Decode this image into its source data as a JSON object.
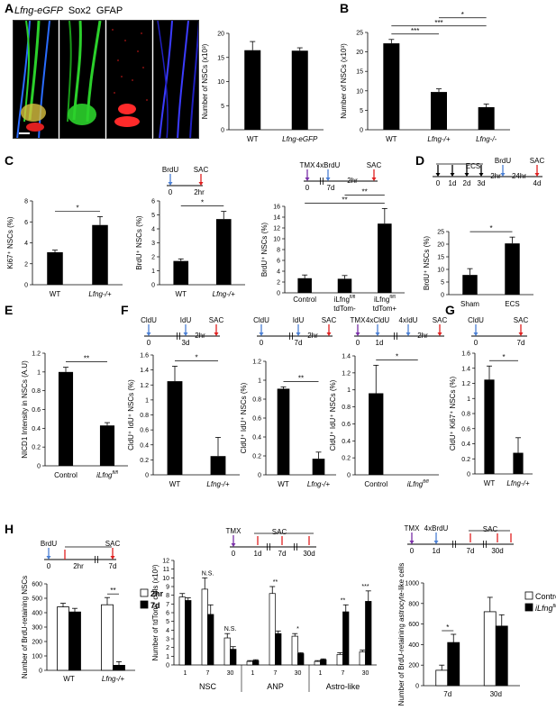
{
  "panel_letters": [
    "A",
    "B",
    "C",
    "D",
    "E",
    "F",
    "G",
    "H"
  ],
  "microscopy": {
    "labels": [
      {
        "text": "Lfng-eGFP",
        "color": "#1fa31f"
      },
      {
        "text": "Sox2",
        "color": "#e02020"
      },
      {
        "text": "GFAP",
        "color": "#2323c8"
      }
    ]
  },
  "timelines": {
    "C1": {
      "events": [
        "BrdU",
        "SAC"
      ],
      "ticks": [
        "0",
        "2hr"
      ]
    },
    "C2": {
      "events": [
        "TMX",
        "4xBrdU",
        "2hr",
        "SAC"
      ],
      "ticks": [
        "0",
        "7d"
      ]
    },
    "D": {
      "events": [
        "ECS",
        "BrdU",
        "2hr",
        "24hr",
        "SAC"
      ],
      "ticks": [
        "0",
        "1d",
        "2d",
        "3d",
        "4d"
      ]
    },
    "F1": {
      "events": [
        "CldU",
        "IdU",
        "2hr",
        "SAC"
      ],
      "ticks": [
        "0",
        "3d"
      ]
    },
    "F2": {
      "events": [
        "CldU",
        "IdU",
        "2hr",
        "SAC"
      ],
      "ticks": [
        "0",
        "7d"
      ]
    },
    "F3": {
      "events": [
        "TMX",
        "4xCldU",
        "4xIdU",
        "2hr",
        "SAC"
      ],
      "ticks": [
        "0",
        "1d"
      ]
    },
    "G": {
      "events": [
        "CldU",
        "SAC"
      ],
      "ticks": [
        "0",
        "7d"
      ]
    },
    "H1": {
      "events": [
        "BrdU",
        "SAC"
      ],
      "ticks": [
        "0",
        "2hr",
        "7d"
      ]
    },
    "H2": {
      "events": [
        "TMX",
        "SAC"
      ],
      "ticks": [
        "0",
        "1d",
        "7d",
        "30d"
      ]
    },
    "H3": {
      "events": [
        "TMX",
        "4xBrdU",
        "SAC"
      ],
      "ticks": [
        "0",
        "1d",
        "7d",
        "30d"
      ]
    }
  },
  "chart_data": [
    {
      "id": "A",
      "type": "bar",
      "categories": [
        "WT",
        "Lfng-eGFP"
      ],
      "values": [
        16.5,
        16.4
      ],
      "errors": [
        1.8,
        0.6
      ],
      "ylabel": "Number of NSCs (x10³)",
      "ylim": [
        0,
        20
      ],
      "yticks": [
        0,
        5,
        10,
        15,
        20
      ],
      "sig": []
    },
    {
      "id": "B",
      "type": "bar",
      "categories": [
        "WT",
        "Lfng-/+",
        "Lfng-/-"
      ],
      "values": [
        22.2,
        9.7,
        5.8
      ],
      "errors": [
        1.0,
        0.8,
        0.8
      ],
      "ylabel": "Number of NSCs (x10³)",
      "ylim": [
        0,
        25
      ],
      "yticks": [
        0,
        5,
        10,
        15,
        20,
        25
      ],
      "sig": [
        {
          "from": 0,
          "to": 1,
          "label": "***",
          "level": 0
        },
        {
          "from": 0,
          "to": 2,
          "label": "***",
          "level": 1
        },
        {
          "from": 1,
          "to": 2,
          "label": "*",
          "level": 2
        }
      ]
    },
    {
      "id": "C_ki67",
      "type": "bar",
      "categories": [
        "WT",
        "Lfng-/+"
      ],
      "values": [
        3.1,
        5.7
      ],
      "errors": [
        0.2,
        0.8
      ],
      "ylabel": "Ki67⁺ NSCs (%)",
      "ylim": [
        0,
        8
      ],
      "yticks": [
        0,
        2,
        4,
        6,
        8
      ],
      "sig": [
        {
          "from": 0,
          "to": 1,
          "label": "*",
          "level": 0
        }
      ]
    },
    {
      "id": "C_brdu",
      "type": "bar",
      "categories": [
        "WT",
        "Lfng-/+"
      ],
      "values": [
        1.7,
        4.7
      ],
      "errors": [
        0.15,
        0.55
      ],
      "ylabel": "BrdU⁺ NSCs (%)",
      "ylim": [
        0,
        6
      ],
      "yticks": [
        0,
        1,
        2,
        3,
        4,
        5,
        6
      ],
      "sig": [
        {
          "from": 0,
          "to": 1,
          "label": "*",
          "level": 0
        }
      ]
    },
    {
      "id": "C_ilfng",
      "type": "bar",
      "categories": [
        "Control",
        "iLfng fl/fl tdTom-",
        "iLfng fl/fl tdTom+"
      ],
      "values": [
        2.7,
        2.6,
        12.8
      ],
      "errors": [
        0.6,
        0.6,
        2.8
      ],
      "ylabel": "BrdU⁺ NSCs (%)",
      "ylim": [
        0,
        16
      ],
      "yticks": [
        0,
        2,
        4,
        6,
        8,
        10,
        12,
        14,
        16
      ],
      "sig": [
        {
          "from": 0,
          "to": 2,
          "label": "**",
          "level": 0
        },
        {
          "from": 1,
          "to": 2,
          "label": "**",
          "level": 1
        }
      ]
    },
    {
      "id": "D",
      "type": "bar",
      "categories": [
        "Sham",
        "ECS"
      ],
      "values": [
        7.8,
        20.3
      ],
      "errors": [
        2.5,
        2.5
      ],
      "ylabel": "BrdU⁺ NSCs (%)",
      "ylim": [
        0,
        25
      ],
      "yticks": [
        0,
        5,
        10,
        15,
        20,
        25
      ],
      "sig": [
        {
          "from": 0,
          "to": 1,
          "label": "*",
          "level": 0
        }
      ]
    },
    {
      "id": "E",
      "type": "bar",
      "categories": [
        "Control",
        "iLfng fl/fl"
      ],
      "values": [
        1.0,
        0.43
      ],
      "errors": [
        0.05,
        0.03
      ],
      "ylabel": "NICD1 Intensity in NSCs (A.U)",
      "ylim": [
        0,
        1.2
      ],
      "yticks": [
        0,
        0.2,
        0.4,
        0.6,
        0.8,
        1,
        1.2
      ],
      "sig": [
        {
          "from": 0,
          "to": 1,
          "label": "**",
          "level": 0
        }
      ]
    },
    {
      "id": "F1",
      "type": "bar",
      "categories": [
        "WT",
        "Lfng-/+"
      ],
      "values": [
        1.25,
        0.25
      ],
      "errors": [
        0.2,
        0.25
      ],
      "ylabel": "CldU⁺ IdU⁺ NSCs (%)",
      "ylim": [
        0,
        1.6
      ],
      "yticks": [
        0,
        0.2,
        0.4,
        0.6,
        0.8,
        1,
        1.2,
        1.4,
        1.6
      ],
      "sig": [
        {
          "from": 0,
          "to": 1,
          "label": "*",
          "level": 0
        }
      ]
    },
    {
      "id": "F2",
      "type": "bar",
      "categories": [
        "WT",
        "Lfng-/+"
      ],
      "values": [
        0.91,
        0.17
      ],
      "errors": [
        0.02,
        0.07
      ],
      "ylabel": "CldU⁺ IdU⁺ NSCs (%)",
      "ylim": [
        0,
        1.2
      ],
      "yticks": [
        0,
        0.2,
        0.4,
        0.6,
        0.8,
        1,
        1.2
      ],
      "sig": [
        {
          "from": 0,
          "to": 1,
          "label": "**",
          "level": 0
        }
      ]
    },
    {
      "id": "F3",
      "type": "bar",
      "categories": [
        "Control",
        "iLfng fl/fl"
      ],
      "values": [
        0.96,
        0
      ],
      "errors": [
        0.33,
        0
      ],
      "ylabel": "CldU⁺ IdU⁺ NSCs (%)",
      "ylim": [
        0,
        1.4
      ],
      "yticks": [
        0,
        0.2,
        0.4,
        0.6,
        0.8,
        1,
        1.2,
        1.4
      ],
      "sig": [
        {
          "from": 0,
          "to": 1,
          "label": "*",
          "level": 0
        }
      ]
    },
    {
      "id": "G",
      "type": "bar",
      "categories": [
        "WT",
        "Lfng-/+"
      ],
      "values": [
        1.25,
        0.28
      ],
      "errors": [
        0.18,
        0.2
      ],
      "ylabel": "CldU⁺ Ki67⁺ NSCs (%)",
      "ylim": [
        0,
        1.6
      ],
      "yticks": [
        0,
        0.2,
        0.4,
        0.6,
        0.8,
        1,
        1.2,
        1.4,
        1.6
      ],
      "sig": [
        {
          "from": 0,
          "to": 1,
          "label": "*",
          "level": 0
        }
      ]
    },
    {
      "id": "H1",
      "type": "bar",
      "groups": [
        "WT",
        "Lfng-/+"
      ],
      "series": [
        {
          "name": "2hr",
          "fill": "#ffffff",
          "values": [
            440,
            455
          ],
          "errors": [
            25,
            50
          ]
        },
        {
          "name": "7d",
          "fill": "#000000",
          "values": [
            405,
            35
          ],
          "errors": [
            25,
            25
          ]
        }
      ],
      "ylabel": "Number of BrdU-retaining NSCs",
      "ylim": [
        0,
        600
      ],
      "yticks": [
        0,
        100,
        200,
        300,
        400,
        500,
        600
      ],
      "sig": [
        {
          "group": 1,
          "label": "**"
        }
      ],
      "legend": "right"
    },
    {
      "id": "H2",
      "type": "bar",
      "groups": [
        "NSC",
        "ANP",
        "Astro-like"
      ],
      "subcategories": [
        "1",
        "7",
        "30"
      ],
      "series": [
        {
          "name": "Control",
          "fill": "#ffffff",
          "values": [
            [
              7.8,
              8.7,
              3.1
            ],
            [
              0.4,
              8.2,
              3.3
            ],
            [
              0.4,
              1.2,
              1.5
            ]
          ],
          "errors": [
            [
              0.4,
              1.3,
              0.5
            ],
            [
              0.1,
              0.8,
              0.3
            ],
            [
              0.1,
              0.2,
              0.2
            ]
          ]
        },
        {
          "name": "iLfng fl/fl",
          "fill": "#000000",
          "values": [
            [
              7.4,
              5.8,
              1.8
            ],
            [
              0.5,
              3.6,
              1.3
            ],
            [
              0.6,
              6.1,
              7.3
            ]
          ],
          "errors": [
            [
              0.3,
              1.1,
              0.3
            ],
            [
              0.1,
              0.3,
              0.1
            ],
            [
              0.1,
              0.8,
              1.2
            ]
          ]
        }
      ],
      "ylabel": "Number of tdTom⁺ cells (x10³)",
      "ylim": [
        0,
        12
      ],
      "yticks": [
        0,
        1,
        2,
        3,
        4,
        5,
        6,
        7,
        8,
        9,
        10,
        11,
        12
      ],
      "sig": [
        {
          "group": 0,
          "sub": 1,
          "label": "N.S."
        },
        {
          "group": 0,
          "sub": 2,
          "label": "N.S."
        },
        {
          "group": 1,
          "sub": 1,
          "label": "**"
        },
        {
          "group": 1,
          "sub": 2,
          "label": "*"
        },
        {
          "group": 2,
          "sub": 1,
          "label": "**"
        },
        {
          "group": 2,
          "sub": 2,
          "label": "***"
        }
      ]
    },
    {
      "id": "H3",
      "type": "bar",
      "groups": [
        "7d",
        "30d"
      ],
      "series": [
        {
          "name": "Control",
          "fill": "#ffffff",
          "values": [
            150,
            720
          ],
          "errors": [
            50,
            140
          ]
        },
        {
          "name": "iLfng fl/fl",
          "fill": "#000000",
          "values": [
            420,
            580
          ],
          "errors": [
            80,
            110
          ]
        }
      ],
      "ylabel": "Number of BrdU-retaining astrocyte-like cells",
      "ylim": [
        0,
        1000
      ],
      "yticks": [
        0,
        200,
        400,
        600,
        800,
        1000
      ],
      "sig": [
        {
          "group": 0,
          "label": "*"
        }
      ],
      "legend": "right"
    }
  ]
}
